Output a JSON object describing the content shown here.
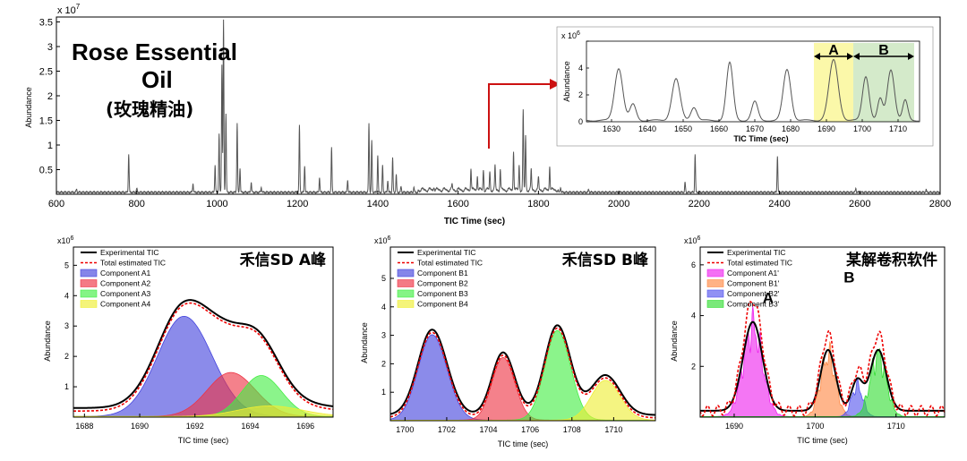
{
  "chart_data": [
    {
      "id": "main",
      "type": "line",
      "title_lines": [
        "Rose  Essential",
        "Oil",
        "(玫瑰精油)"
      ],
      "xlabel": "TIC Time (sec)",
      "ylabel": "Abundance",
      "y_multiplier": "x 10",
      "y_exponent": "7",
      "xlim": [
        600,
        2800
      ],
      "ylim": [
        0,
        3.6
      ],
      "xticks": [
        600,
        800,
        1000,
        1200,
        1400,
        1600,
        1800,
        2000,
        2200,
        2400,
        2600,
        2800
      ],
      "yticks": [
        0.5,
        1,
        1.5,
        2,
        2.5,
        3,
        3.5
      ],
      "ytick_labels": [
        "0.5",
        "1",
        "1.5",
        "2",
        "2.5",
        "3",
        "3.5"
      ],
      "peaks": [
        [
          650,
          0.06
        ],
        [
          780,
          0.78
        ],
        [
          800,
          0.08
        ],
        [
          940,
          0.18
        ],
        [
          995,
          0.55
        ],
        [
          1005,
          1.2
        ],
        [
          1012,
          2.6
        ],
        [
          1016,
          3.5
        ],
        [
          1022,
          1.6
        ],
        [
          1050,
          1.4
        ],
        [
          1057,
          0.5
        ],
        [
          1085,
          0.2
        ],
        [
          1110,
          0.1
        ],
        [
          1205,
          1.35
        ],
        [
          1218,
          0.55
        ],
        [
          1255,
          0.3
        ],
        [
          1285,
          0.9
        ],
        [
          1325,
          0.25
        ],
        [
          1378,
          1.4
        ],
        [
          1385,
          1.05
        ],
        [
          1400,
          0.75
        ],
        [
          1412,
          0.55
        ],
        [
          1425,
          0.25
        ],
        [
          1437,
          0.7
        ],
        [
          1446,
          0.35
        ],
        [
          1458,
          0.12
        ],
        [
          1490,
          0.1
        ],
        [
          1540,
          0.08
        ],
        [
          1585,
          0.1
        ],
        [
          1632,
          0.45
        ],
        [
          1648,
          0.3
        ],
        [
          1663,
          0.42
        ],
        [
          1679,
          0.38
        ],
        [
          1692,
          0.48
        ],
        [
          1705,
          0.42
        ],
        [
          1738,
          0.8
        ],
        [
          1752,
          0.5
        ],
        [
          1762,
          1.6
        ],
        [
          1768,
          1.1
        ],
        [
          1782,
          0.4
        ],
        [
          1800,
          0.25
        ],
        [
          1828,
          0.5
        ],
        [
          1855,
          0.1
        ],
        [
          1925,
          0.06
        ],
        [
          2165,
          0.2
        ],
        [
          2190,
          0.78
        ],
        [
          2395,
          0.75
        ],
        [
          2590,
          0.08
        ],
        [
          2765,
          0.05
        ]
      ]
    },
    {
      "id": "inset",
      "type": "line",
      "xlabel": "TIC Time (sec)",
      "ylabel": "Abundance",
      "y_multiplier": "x 10",
      "y_exponent": "6",
      "xlim": [
        1623,
        1716
      ],
      "ylim": [
        0,
        6
      ],
      "xticks": [
        1630,
        1640,
        1650,
        1660,
        1670,
        1680,
        1690,
        1700,
        1710
      ],
      "yticks": [
        0,
        2,
        4,
        6
      ],
      "ytick_labels": [
        "0",
        "2",
        "4",
        ""
      ],
      "highlight_A": [
        1686.5,
        1697.5
      ],
      "highlight_B": [
        1697.5,
        1714.5
      ],
      "label_A": "A",
      "label_B": "B",
      "peaks": [
        [
          1632,
          3.9,
          1.6
        ],
        [
          1636,
          1.2,
          1.2
        ],
        [
          1648,
          3.1,
          1.6
        ],
        [
          1653,
          1.0,
          1.2
        ],
        [
          1663,
          4.3,
          1.3
        ],
        [
          1670,
          1.4,
          1.2
        ],
        [
          1679,
          3.8,
          1.5
        ],
        [
          1692,
          4.5,
          1.8
        ],
        [
          1701,
          3.3,
          1.3
        ],
        [
          1705,
          1.6,
          1.0
        ],
        [
          1708,
          3.8,
          1.4
        ],
        [
          1712,
          1.5,
          1.0
        ]
      ]
    },
    {
      "id": "panel-A",
      "type": "area",
      "title": "禾信SD A峰",
      "xlabel": "TIC time (sec)",
      "ylabel": "Abundance",
      "y_multiplier": "x10",
      "y_exponent": "6",
      "xlim": [
        1687.6,
        1697
      ],
      "ylim": [
        0,
        5.6
      ],
      "xticks": [
        1688,
        1690,
        1692,
        1694,
        1696
      ],
      "yticks": [
        1,
        2,
        3,
        4,
        5
      ],
      "legend": [
        "Experimental TIC",
        "Total estimated TIC",
        "Component A1",
        "Component A2",
        "Component A3",
        "Component A4"
      ],
      "series": [
        {
          "name": "Component A1",
          "color": "#4444dd",
          "params": [
            1691.6,
            3.3,
            1.35,
            0.15
          ]
        },
        {
          "name": "Component A2",
          "color": "#ee3344",
          "params": [
            1693.3,
            1.45,
            1.2,
            0.1
          ]
        },
        {
          "name": "Component A3",
          "color": "#44ee44",
          "params": [
            1694.4,
            1.35,
            1.0,
            0.1
          ]
        },
        {
          "name": "Component A4",
          "color": "#eeee33",
          "params": [
            1694.7,
            0.35,
            1.6,
            0.1
          ]
        }
      ],
      "baseline": 0.25
    },
    {
      "id": "panel-B",
      "type": "area",
      "title": "禾信SD  B峰",
      "xlabel": "TIC time (sec)",
      "ylabel": "Abundance",
      "y_multiplier": "x10",
      "y_exponent": "6",
      "xlim": [
        1699.3,
        1712
      ],
      "ylim": [
        0,
        6.1
      ],
      "xticks": [
        1700,
        1702,
        1704,
        1706,
        1708,
        1710
      ],
      "yticks": [
        1,
        2,
        3,
        4,
        5
      ],
      "legend": [
        "Experimental TIC",
        "Total estimated TIC",
        "Component B1",
        "Component B2",
        "Component B3",
        "Component B4"
      ],
      "series": [
        {
          "name": "Component B1",
          "color": "#4444dd",
          "params": [
            1701.3,
            3.0,
            0.95,
            0.12
          ]
        },
        {
          "name": "Component B2",
          "color": "#ee3344",
          "params": [
            1704.7,
            2.2,
            0.75,
            0.1
          ]
        },
        {
          "name": "Component B3",
          "color": "#44ee44",
          "params": [
            1707.3,
            3.15,
            0.85,
            0.1
          ]
        },
        {
          "name": "Component B4",
          "color": "#eeee33",
          "params": [
            1709.6,
            1.4,
            0.95,
            0.1
          ]
        }
      ],
      "baseline": 0.15
    },
    {
      "id": "panel-C",
      "type": "area",
      "title": "某解卷积软件",
      "xlabel": "TIC time (sec)",
      "ylabel": "Abundance",
      "y_multiplier": "x10",
      "y_exponent": "6",
      "xlim": [
        1685.8,
        1716
      ],
      "ylim": [
        0,
        6.7
      ],
      "xticks": [
        1690,
        1700,
        1710
      ],
      "yticks": [
        2,
        4,
        6
      ],
      "legend": [
        "Experimental TIC",
        "Total estimated TIC",
        "Component A1'",
        "Component B1'",
        "Component B2'",
        "Component B3'"
      ],
      "peak_labels": [
        "A",
        "B"
      ],
      "series": [
        {
          "name": "Component A1'",
          "color": "#ee22ee",
          "params": [
            1692.3,
            3.5,
            1.7,
            0
          ]
        },
        {
          "name": "Component B1'",
          "color": "#ff8844",
          "params": [
            1701.6,
            2.4,
            1.3,
            0
          ]
        },
        {
          "name": "Component B2'",
          "color": "#5555ee",
          "params": [
            1705.2,
            1.2,
            1.0,
            0
          ]
        },
        {
          "name": "Component B3'",
          "color": "#33dd33",
          "params": [
            1707.8,
            2.4,
            1.4,
            0
          ]
        }
      ],
      "baseline": 0.2
    }
  ]
}
